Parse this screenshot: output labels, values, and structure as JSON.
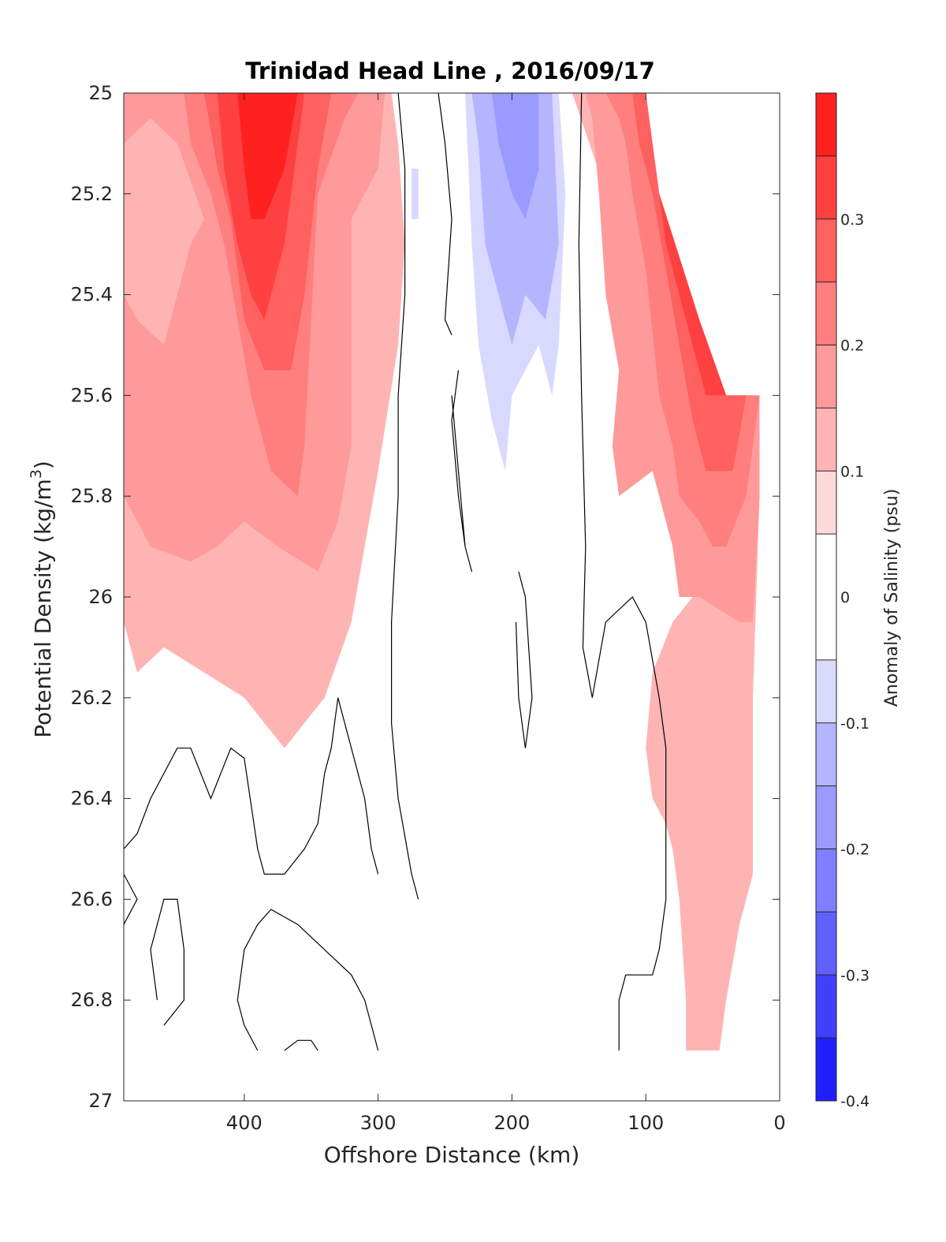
{
  "chart_data": {
    "type": "contour",
    "title": "Trinidad Head Line , 2016/09/17",
    "xlabel": "Offshore Distance (km)",
    "ylabel_main": "Potential Density (kg/m",
    "ylabel_sup": "3",
    "ylabel_close": ")",
    "xlim": [
      490,
      0
    ],
    "ylim": [
      25,
      27
    ],
    "x_ticks": [
      "400",
      "300",
      "200",
      "100",
      "0"
    ],
    "x_tick_values": [
      400,
      300,
      200,
      100,
      0
    ],
    "y_ticks": [
      "25",
      "25.2",
      "25.4",
      "25.6",
      "25.8",
      "26",
      "26.2",
      "26.4",
      "26.6",
      "26.8",
      "27"
    ],
    "y_tick_values": [
      25,
      25.2,
      25.4,
      25.6,
      25.8,
      26,
      26.2,
      26.4,
      26.6,
      26.8,
      27
    ],
    "colorbar": {
      "label": "Anomaly of Salinity (psu)",
      "range": [
        -0.4,
        0.4
      ],
      "tick_labels": [
        "0.3",
        "0.2",
        "0.1",
        "0",
        "-0.1",
        "-0.2",
        "-0.3",
        "-0.4"
      ],
      "tick_values": [
        0.3,
        0.2,
        0.1,
        0,
        -0.1,
        -0.2,
        -0.3,
        -0.4
      ],
      "levels": [
        -0.4,
        -0.35,
        -0.3,
        -0.25,
        -0.2,
        -0.15,
        -0.1,
        -0.05,
        0.05,
        0.1,
        0.15,
        0.2,
        0.25,
        0.3,
        0.35,
        0.4
      ],
      "colors": [
        "#0000ff",
        "#2020ff",
        "#4040ff",
        "#6060ff",
        "#7f7fff",
        "#9a9aff",
        "#b4b4ff",
        "#d9d9ff",
        "#ffffff",
        "#ffd9d9",
        "#ffb4b4",
        "#ff9a9a",
        "#ff7f7f",
        "#ff6060",
        "#ff4040",
        "#ff2020",
        "#ff0000"
      ]
    },
    "regions": [
      {
        "level": 0.1,
        "points": [
          [
            490,
            25
          ],
          [
            290,
            25
          ],
          [
            285,
            25.1
          ],
          [
            280,
            25.3
          ],
          [
            285,
            25.5
          ],
          [
            300,
            25.75
          ],
          [
            310,
            25.9
          ],
          [
            320,
            26.05
          ],
          [
            340,
            26.2
          ],
          [
            370,
            26.3
          ],
          [
            400,
            26.2
          ],
          [
            430,
            26.15
          ],
          [
            460,
            26.1
          ],
          [
            480,
            26.15
          ],
          [
            490,
            26.05
          ]
        ]
      },
      {
        "level": 0.15,
        "points": [
          [
            490,
            25
          ],
          [
            295,
            25
          ],
          [
            300,
            25.15
          ],
          [
            320,
            25.25
          ],
          [
            320,
            25.45
          ],
          [
            320,
            25.6
          ],
          [
            320,
            25.7
          ],
          [
            330,
            25.85
          ],
          [
            345,
            25.95
          ],
          [
            375,
            25.9
          ],
          [
            400,
            25.85
          ],
          [
            420,
            25.9
          ],
          [
            440,
            25.93
          ],
          [
            470,
            25.9
          ],
          [
            490,
            25.8
          ],
          [
            490,
            25.4
          ],
          [
            480,
            25.45
          ],
          [
            460,
            25.5
          ],
          [
            440,
            25.3
          ],
          [
            430,
            25.25
          ],
          [
            450,
            25.1
          ],
          [
            470,
            25.05
          ],
          [
            490,
            25.1
          ]
        ]
      },
      {
        "level": 0.2,
        "points": [
          [
            445,
            25
          ],
          [
            315,
            25
          ],
          [
            325,
            25.05
          ],
          [
            345,
            25.2
          ],
          [
            350,
            25.45
          ],
          [
            355,
            25.7
          ],
          [
            360,
            25.8
          ],
          [
            380,
            25.75
          ],
          [
            395,
            25.6
          ],
          [
            405,
            25.45
          ],
          [
            415,
            25.3
          ],
          [
            425,
            25.2
          ],
          [
            440,
            25.1
          ]
        ]
      },
      {
        "level": 0.25,
        "points": [
          [
            430,
            25
          ],
          [
            335,
            25
          ],
          [
            345,
            25.15
          ],
          [
            355,
            25.4
          ],
          [
            365,
            25.55
          ],
          [
            385,
            25.55
          ],
          [
            400,
            25.45
          ],
          [
            410,
            25.25
          ],
          [
            420,
            25.15
          ]
        ]
      },
      {
        "level": 0.3,
        "points": [
          [
            420,
            25
          ],
          [
            355,
            25
          ],
          [
            360,
            25.1
          ],
          [
            370,
            25.3
          ],
          [
            385,
            25.45
          ],
          [
            395,
            25.4
          ],
          [
            405,
            25.3
          ],
          [
            415,
            25.15
          ]
        ]
      },
      {
        "level": 0.35,
        "points": [
          [
            405,
            25
          ],
          [
            360,
            25
          ],
          [
            370,
            25.15
          ],
          [
            385,
            25.25
          ],
          [
            395,
            25.25
          ],
          [
            400,
            25.15
          ]
        ]
      },
      {
        "level": 0.1,
        "points": [
          [
            155,
            25
          ],
          [
            100,
            25
          ],
          [
            90,
            25.2
          ],
          [
            60,
            25.45
          ],
          [
            40,
            25.6
          ],
          [
            20,
            25.6
          ],
          [
            15,
            25.8
          ],
          [
            20,
            26.2
          ],
          [
            20,
            26.55
          ],
          [
            30,
            26.65
          ],
          [
            40,
            26.8
          ],
          [
            45,
            26.9
          ],
          [
            70,
            26.9
          ],
          [
            70,
            26.8
          ],
          [
            75,
            26.6
          ],
          [
            80,
            26.5
          ],
          [
            85,
            26.45
          ],
          [
            95,
            26.4
          ],
          [
            100,
            26.3
          ],
          [
            95,
            26.15
          ],
          [
            80,
            26.05
          ],
          [
            65,
            26.0
          ],
          [
            40,
            26.0
          ],
          [
            25,
            26.0
          ],
          [
            20,
            26.05
          ]
        ]
      },
      {
        "level": 0.15,
        "points": [
          [
            145,
            25
          ],
          [
            100,
            25
          ],
          [
            90,
            25.2
          ],
          [
            60,
            25.45
          ],
          [
            40,
            25.6
          ],
          [
            15,
            25.6
          ],
          [
            15,
            25.8
          ],
          [
            20,
            26.05
          ],
          [
            30,
            26.05
          ],
          [
            60,
            26.0
          ],
          [
            75,
            26.0
          ],
          [
            80,
            25.9
          ],
          [
            95,
            25.75
          ],
          [
            120,
            25.8
          ],
          [
            125,
            25.7
          ],
          [
            120,
            25.55
          ],
          [
            130,
            25.4
          ],
          [
            135,
            25.2
          ],
          [
            140,
            25.05
          ]
        ]
      },
      {
        "level": 0.2,
        "points": [
          [
            130,
            25
          ],
          [
            100,
            25
          ],
          [
            90,
            25.2
          ],
          [
            60,
            25.45
          ],
          [
            40,
            25.6
          ],
          [
            15,
            25.6
          ],
          [
            25,
            25.8
          ],
          [
            40,
            25.9
          ],
          [
            50,
            25.9
          ],
          [
            60,
            25.85
          ],
          [
            75,
            25.8
          ],
          [
            80,
            25.7
          ],
          [
            90,
            25.6
          ],
          [
            100,
            25.35
          ],
          [
            110,
            25.2
          ],
          [
            115,
            25.1
          ],
          [
            120,
            25.05
          ]
        ]
      },
      {
        "level": 0.25,
        "points": [
          [
            110,
            25
          ],
          [
            100,
            25
          ],
          [
            90,
            25.2
          ],
          [
            60,
            25.45
          ],
          [
            40,
            25.6
          ],
          [
            25,
            25.6
          ],
          [
            35,
            25.75
          ],
          [
            45,
            25.75
          ],
          [
            55,
            25.75
          ],
          [
            65,
            25.65
          ],
          [
            75,
            25.5
          ],
          [
            85,
            25.35
          ],
          [
            95,
            25.2
          ],
          [
            105,
            25.1
          ]
        ]
      },
      {
        "level": 0.3,
        "points": [
          [
            100,
            25
          ],
          [
            90,
            25.2
          ],
          [
            60,
            25.45
          ],
          [
            40,
            25.6
          ],
          [
            45,
            25.6
          ],
          [
            55,
            25.6
          ],
          [
            65,
            25.5
          ],
          [
            75,
            25.4
          ],
          [
            85,
            25.3
          ],
          [
            95,
            25.1
          ]
        ]
      },
      {
        "level": -0.1,
        "points": [
          [
            235,
            25
          ],
          [
            165,
            25
          ],
          [
            160,
            25.2
          ],
          [
            165,
            25.5
          ],
          [
            170,
            25.6
          ],
          [
            175,
            25.55
          ],
          [
            180,
            25.5
          ],
          [
            190,
            25.55
          ],
          [
            200,
            25.6
          ],
          [
            205,
            25.75
          ],
          [
            215,
            25.65
          ],
          [
            225,
            25.5
          ],
          [
            230,
            25.3
          ]
        ]
      },
      {
        "level": -0.15,
        "points": [
          [
            230,
            25
          ],
          [
            170,
            25
          ],
          [
            165,
            25.3
          ],
          [
            175,
            25.45
          ],
          [
            190,
            25.4
          ],
          [
            200,
            25.5
          ],
          [
            210,
            25.4
          ],
          [
            220,
            25.3
          ],
          [
            225,
            25.1
          ]
        ]
      },
      {
        "level": -0.2,
        "points": [
          [
            215,
            25
          ],
          [
            180,
            25
          ],
          [
            180,
            25.15
          ],
          [
            190,
            25.25
          ],
          [
            200,
            25.2
          ],
          [
            210,
            25.1
          ]
        ]
      },
      {
        "level": -0.1,
        "points": [
          [
            275,
            25.15
          ],
          [
            270,
            25.15
          ],
          [
            270,
            25.25
          ],
          [
            275,
            25.25
          ]
        ]
      }
    ],
    "zero_contours": [
      [
        [
          285,
          25
        ],
        [
          280,
          25.15
        ],
        [
          280,
          25.4
        ],
        [
          285,
          25.6
        ],
        [
          285,
          25.8
        ],
        [
          290,
          26.05
        ],
        [
          290,
          26.25
        ],
        [
          285,
          26.4
        ],
        [
          275,
          26.55
        ],
        [
          270,
          26.6
        ]
      ],
      [
        [
          255,
          25
        ],
        [
          250,
          25.1
        ],
        [
          245,
          25.25
        ],
        [
          250,
          25.45
        ],
        [
          245,
          25.48
        ]
      ],
      [
        [
          148,
          25
        ],
        [
          150,
          25.3
        ],
        [
          148,
          25.6
        ],
        [
          145,
          25.9
        ],
        [
          147,
          26.1
        ],
        [
          140,
          26.2
        ],
        [
          130,
          26.05
        ],
        [
          110,
          26.0
        ],
        [
          100,
          26.05
        ],
        [
          90,
          26.2
        ],
        [
          85,
          26.3
        ],
        [
          85,
          26.6
        ],
        [
          90,
          26.7
        ],
        [
          95,
          26.75
        ],
        [
          115,
          26.75
        ],
        [
          120,
          26.8
        ],
        [
          120,
          26.9
        ]
      ],
      [
        [
          240,
          25.55
        ],
        [
          245,
          25.65
        ],
        [
          240,
          25.8
        ],
        [
          235,
          25.9
        ],
        [
          230,
          25.95
        ],
        [
          235,
          25.9
        ],
        [
          240,
          25.75
        ],
        [
          245,
          25.6
        ]
      ],
      [
        [
          195,
          25.95
        ],
        [
          190,
          26.0
        ],
        [
          185,
          26.2
        ],
        [
          190,
          26.3
        ],
        [
          195,
          26.2
        ],
        [
          197,
          26.05
        ]
      ],
      [
        [
          490,
          26.5
        ],
        [
          480,
          26.47
        ],
        [
          470,
          26.4
        ],
        [
          450,
          26.3
        ],
        [
          440,
          26.3
        ],
        [
          425,
          26.4
        ],
        [
          410,
          26.3
        ],
        [
          400,
          26.32
        ],
        [
          390,
          26.5
        ],
        [
          385,
          26.55
        ],
        [
          370,
          26.55
        ],
        [
          355,
          26.5
        ],
        [
          345,
          26.45
        ],
        [
          340,
          26.35
        ],
        [
          335,
          26.3
        ],
        [
          330,
          26.2
        ],
        [
          320,
          26.3
        ],
        [
          310,
          26.4
        ],
        [
          305,
          26.5
        ],
        [
          300,
          26.55
        ]
      ],
      [
        [
          490,
          26.55
        ],
        [
          480,
          26.6
        ],
        [
          490,
          26.65
        ]
      ],
      [
        [
          465,
          26.8
        ],
        [
          470,
          26.7
        ],
        [
          460,
          26.6
        ],
        [
          450,
          26.6
        ],
        [
          445,
          26.7
        ],
        [
          445,
          26.8
        ],
        [
          460,
          26.85
        ]
      ],
      [
        [
          390,
          26.9
        ],
        [
          400,
          26.85
        ],
        [
          405,
          26.8
        ],
        [
          400,
          26.7
        ],
        [
          390,
          26.65
        ],
        [
          380,
          26.62
        ],
        [
          360,
          26.65
        ],
        [
          340,
          26.7
        ],
        [
          320,
          26.75
        ],
        [
          310,
          26.8
        ],
        [
          300,
          26.9
        ]
      ],
      [
        [
          370,
          26.9
        ],
        [
          360,
          26.88
        ],
        [
          350,
          26.88
        ],
        [
          345,
          26.9
        ]
      ]
    ]
  }
}
